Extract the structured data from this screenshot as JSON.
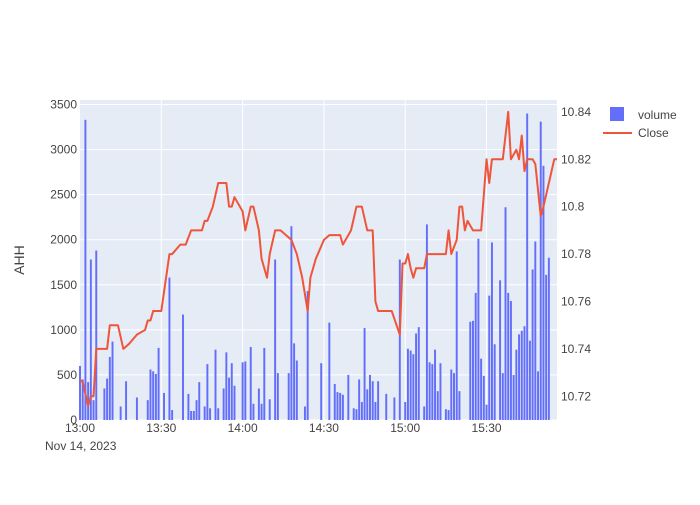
{
  "chart_data": {
    "type": "bar+line",
    "ylabel": "AHH",
    "y_left_ticks": [
      0,
      500,
      1000,
      1500,
      2000,
      2500,
      3000,
      3500
    ],
    "y_left_range": [
      0,
      3550
    ],
    "y_right_ticks": [
      "10.72",
      "10.74",
      "10.76",
      "10.78",
      "10.8",
      "10.82",
      "10.84"
    ],
    "y_right_range": [
      10.71,
      10.845
    ],
    "x_ticks": [
      "13:00",
      "13:30",
      "14:00",
      "14:30",
      "15:00",
      "15:30"
    ],
    "x_date_label": "Nov 14, 2023",
    "x_range_minutes": [
      0,
      176
    ],
    "legend_position": "top-right",
    "grid": true,
    "colors": {
      "volume": "#636efa",
      "close": "#ef553b",
      "plot_bg": "#e5ecf6",
      "grid": "#ffffff"
    },
    "series": [
      {
        "name": "volume",
        "type": "bar",
        "points": [
          [
            0,
            600
          ],
          [
            1,
            450
          ],
          [
            2,
            3330
          ],
          [
            3,
            420
          ],
          [
            4,
            1780
          ],
          [
            5,
            220
          ],
          [
            6,
            1880
          ],
          [
            9,
            350
          ],
          [
            10,
            460
          ],
          [
            11,
            700
          ],
          [
            12,
            870
          ],
          [
            15,
            150
          ],
          [
            17,
            430
          ],
          [
            21,
            250
          ],
          [
            25,
            220
          ],
          [
            26,
            560
          ],
          [
            27,
            540
          ],
          [
            28,
            510
          ],
          [
            29,
            800
          ],
          [
            31,
            300
          ],
          [
            33,
            1580
          ],
          [
            34,
            110
          ],
          [
            38,
            1170
          ],
          [
            40,
            290
          ],
          [
            41,
            100
          ],
          [
            42,
            100
          ],
          [
            43,
            220
          ],
          [
            44,
            420
          ],
          [
            46,
            150
          ],
          [
            47,
            620
          ],
          [
            48,
            130
          ],
          [
            50,
            780
          ],
          [
            51,
            130
          ],
          [
            53,
            350
          ],
          [
            54,
            750
          ],
          [
            55,
            470
          ],
          [
            56,
            630
          ],
          [
            57,
            380
          ],
          [
            60,
            640
          ],
          [
            61,
            650
          ],
          [
            63,
            810
          ],
          [
            64,
            180
          ],
          [
            66,
            350
          ],
          [
            67,
            180
          ],
          [
            68,
            800
          ],
          [
            70,
            230
          ],
          [
            72,
            1780
          ],
          [
            73,
            520
          ],
          [
            77,
            520
          ],
          [
            78,
            2150
          ],
          [
            79,
            850
          ],
          [
            80,
            660
          ],
          [
            83,
            150
          ],
          [
            84,
            1430
          ],
          [
            89,
            630
          ],
          [
            92,
            1080
          ],
          [
            94,
            400
          ],
          [
            95,
            310
          ],
          [
            96,
            300
          ],
          [
            97,
            280
          ],
          [
            99,
            500
          ],
          [
            101,
            130
          ],
          [
            102,
            120
          ],
          [
            103,
            450
          ],
          [
            104,
            200
          ],
          [
            105,
            1020
          ],
          [
            106,
            340
          ],
          [
            107,
            500
          ],
          [
            108,
            430
          ],
          [
            109,
            200
          ],
          [
            110,
            430
          ],
          [
            113,
            290
          ],
          [
            116,
            250
          ],
          [
            118,
            1780
          ],
          [
            120,
            200
          ],
          [
            121,
            790
          ],
          [
            122,
            770
          ],
          [
            123,
            730
          ],
          [
            124,
            960
          ],
          [
            125,
            1030
          ],
          [
            127,
            150
          ],
          [
            128,
            2170
          ],
          [
            129,
            640
          ],
          [
            130,
            620
          ],
          [
            131,
            780
          ],
          [
            132,
            320
          ],
          [
            133,
            630
          ],
          [
            135,
            120
          ],
          [
            136,
            110
          ],
          [
            137,
            560
          ],
          [
            138,
            520
          ],
          [
            139,
            1870
          ],
          [
            140,
            320
          ],
          [
            144,
            1090
          ],
          [
            145,
            1100
          ],
          [
            146,
            1410
          ],
          [
            147,
            2010
          ],
          [
            148,
            680
          ],
          [
            149,
            490
          ],
          [
            150,
            170
          ],
          [
            151,
            1380
          ],
          [
            152,
            1970
          ],
          [
            153,
            840
          ],
          [
            155,
            1550
          ],
          [
            156,
            520
          ],
          [
            157,
            2360
          ],
          [
            158,
            1410
          ],
          [
            159,
            1320
          ],
          [
            160,
            500
          ],
          [
            161,
            780
          ],
          [
            162,
            950
          ],
          [
            163,
            990
          ],
          [
            164,
            1040
          ],
          [
            165,
            3400
          ],
          [
            166,
            880
          ],
          [
            167,
            1670
          ],
          [
            168,
            1980
          ],
          [
            169,
            540
          ],
          [
            170,
            3310
          ],
          [
            171,
            2820
          ],
          [
            172,
            1610
          ],
          [
            173,
            1800
          ]
        ]
      },
      {
        "name": "Close",
        "type": "line",
        "points": [
          [
            0,
            10.727
          ],
          [
            1,
            10.726
          ],
          [
            2,
            10.721
          ],
          [
            3,
            10.716
          ],
          [
            4,
            10.72
          ],
          [
            5,
            10.72
          ],
          [
            6,
            10.74
          ],
          [
            7,
            10.74
          ],
          [
            8,
            10.74
          ],
          [
            10,
            10.74
          ],
          [
            11,
            10.75
          ],
          [
            14,
            10.75
          ],
          [
            16,
            10.74
          ],
          [
            18,
            10.742
          ],
          [
            21,
            10.746
          ],
          [
            24,
            10.748
          ],
          [
            25,
            10.752
          ],
          [
            26,
            10.752
          ],
          [
            27,
            10.756
          ],
          [
            30,
            10.756
          ],
          [
            33,
            10.78
          ],
          [
            34,
            10.78
          ],
          [
            37,
            10.784
          ],
          [
            39,
            10.784
          ],
          [
            41,
            10.79
          ],
          [
            45,
            10.79
          ],
          [
            46,
            10.794
          ],
          [
            47,
            10.794
          ],
          [
            49,
            10.8
          ],
          [
            51,
            10.81
          ],
          [
            54,
            10.81
          ],
          [
            55,
            10.8
          ],
          [
            56,
            10.8
          ],
          [
            57,
            10.804
          ],
          [
            60,
            10.798
          ],
          [
            61,
            10.79
          ],
          [
            63,
            10.8
          ],
          [
            64,
            10.8
          ],
          [
            66,
            10.79
          ],
          [
            67,
            10.778
          ],
          [
            69,
            10.77
          ],
          [
            70,
            10.78
          ],
          [
            72,
            10.79
          ],
          [
            74,
            10.79
          ],
          [
            78,
            10.786
          ],
          [
            80,
            10.78
          ],
          [
            82,
            10.77
          ],
          [
            84,
            10.756
          ],
          [
            85,
            10.77
          ],
          [
            87,
            10.778
          ],
          [
            90,
            10.786
          ],
          [
            92,
            10.788
          ],
          [
            96,
            10.788
          ],
          [
            97,
            10.784
          ],
          [
            100,
            10.79
          ],
          [
            102,
            10.8
          ],
          [
            104,
            10.8
          ],
          [
            106,
            10.79
          ],
          [
            108,
            10.79
          ],
          [
            109,
            10.76
          ],
          [
            110,
            10.756
          ],
          [
            115,
            10.756
          ],
          [
            118,
            10.746
          ],
          [
            119,
            10.776
          ],
          [
            120,
            10.776
          ],
          [
            121,
            10.78
          ],
          [
            122,
            10.774
          ],
          [
            123,
            10.77
          ],
          [
            124,
            10.774
          ],
          [
            127,
            10.774
          ],
          [
            128,
            10.78
          ],
          [
            130,
            10.78
          ],
          [
            135,
            10.78
          ],
          [
            136,
            10.79
          ],
          [
            137,
            10.78
          ],
          [
            139,
            10.786
          ],
          [
            140,
            10.8
          ],
          [
            141,
            10.8
          ],
          [
            142,
            10.79
          ],
          [
            143,
            10.794
          ],
          [
            145,
            10.79
          ],
          [
            148,
            10.79
          ],
          [
            150,
            10.82
          ],
          [
            151,
            10.81
          ],
          [
            152,
            10.82
          ],
          [
            156,
            10.82
          ],
          [
            158,
            10.84
          ],
          [
            159,
            10.82
          ],
          [
            161,
            10.824
          ],
          [
            162,
            10.82
          ],
          [
            163,
            10.83
          ],
          [
            164,
            10.815
          ],
          [
            165,
            10.82
          ],
          [
            167,
            10.82
          ],
          [
            168,
            10.818
          ],
          [
            170,
            10.796
          ],
          [
            171,
            10.8
          ],
          [
            173,
            10.81
          ],
          [
            175,
            10.82
          ],
          [
            176,
            10.82
          ]
        ]
      }
    ]
  }
}
